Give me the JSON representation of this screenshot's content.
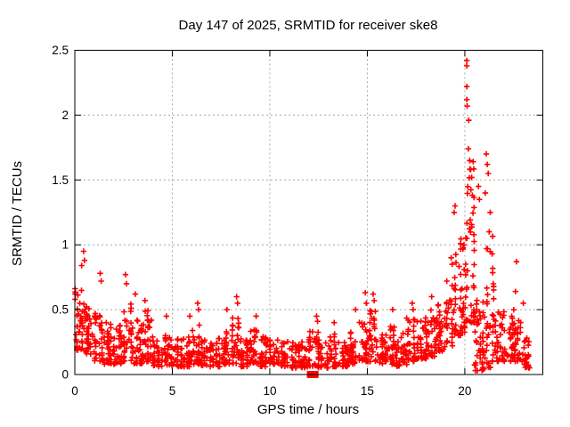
{
  "figure": {
    "background": "#ffffff",
    "border_color": "#000000",
    "grid_color": "#a8a8a8",
    "text_color": "#000000"
  },
  "chart_data": {
    "type": "scatter",
    "title": "Day 147 of 2025, SRMTID for receiver ske8",
    "xlabel": "GPS time / hours",
    "ylabel": "SRMTID / TECUs",
    "series_name": "SRMTID",
    "xlim": [
      0,
      24
    ],
    "ylim": [
      0,
      2.5
    ],
    "xticks": [
      0,
      5,
      10,
      15,
      20
    ],
    "yticks": [
      0,
      0.5,
      1,
      1.5,
      2,
      2.5
    ],
    "grid": true,
    "marker": "plus",
    "marker_color": "#ff0000",
    "seed": 7,
    "density_bins": [
      [
        0.0,
        0.5,
        0.18,
        0.68,
        40
      ],
      [
        0.5,
        1.0,
        0.15,
        0.55,
        36
      ],
      [
        1.0,
        1.5,
        0.1,
        0.5,
        34
      ],
      [
        1.5,
        2.0,
        0.08,
        0.4,
        32
      ],
      [
        2.0,
        2.5,
        0.08,
        0.38,
        32
      ],
      [
        2.5,
        3.0,
        0.1,
        0.55,
        34
      ],
      [
        3.0,
        3.5,
        0.08,
        0.45,
        32
      ],
      [
        3.5,
        4.0,
        0.1,
        0.5,
        34
      ],
      [
        4.0,
        4.5,
        0.06,
        0.3,
        30
      ],
      [
        4.5,
        5.0,
        0.06,
        0.3,
        30
      ],
      [
        5.0,
        5.5,
        0.06,
        0.28,
        30
      ],
      [
        5.5,
        6.0,
        0.06,
        0.3,
        30
      ],
      [
        6.0,
        6.5,
        0.08,
        0.4,
        32
      ],
      [
        6.5,
        7.0,
        0.06,
        0.3,
        30
      ],
      [
        7.0,
        7.5,
        0.06,
        0.28,
        30
      ],
      [
        7.5,
        8.0,
        0.08,
        0.35,
        30
      ],
      [
        8.0,
        8.5,
        0.08,
        0.45,
        32
      ],
      [
        8.5,
        9.0,
        0.06,
        0.3,
        30
      ],
      [
        9.0,
        9.5,
        0.08,
        0.35,
        30
      ],
      [
        9.5,
        10.0,
        0.06,
        0.3,
        30
      ],
      [
        10.0,
        10.5,
        0.08,
        0.32,
        30
      ],
      [
        10.5,
        11.0,
        0.06,
        0.28,
        30
      ],
      [
        11.0,
        11.5,
        0.05,
        0.25,
        28
      ],
      [
        11.5,
        12.0,
        0.05,
        0.28,
        28
      ],
      [
        12.0,
        12.5,
        0.06,
        0.35,
        30
      ],
      [
        12.5,
        13.0,
        0.05,
        0.25,
        28
      ],
      [
        13.0,
        13.5,
        0.06,
        0.32,
        30
      ],
      [
        13.5,
        14.0,
        0.06,
        0.3,
        30
      ],
      [
        14.0,
        14.5,
        0.08,
        0.38,
        32
      ],
      [
        14.5,
        15.0,
        0.1,
        0.45,
        32
      ],
      [
        15.0,
        15.5,
        0.1,
        0.5,
        34
      ],
      [
        15.5,
        16.0,
        0.08,
        0.35,
        30
      ],
      [
        16.0,
        16.5,
        0.08,
        0.38,
        32
      ],
      [
        16.5,
        17.0,
        0.06,
        0.32,
        30
      ],
      [
        17.0,
        17.5,
        0.1,
        0.45,
        32
      ],
      [
        17.5,
        18.0,
        0.12,
        0.42,
        32
      ],
      [
        18.0,
        18.5,
        0.14,
        0.52,
        34
      ],
      [
        18.5,
        19.0,
        0.18,
        0.55,
        34
      ],
      [
        19.0,
        19.5,
        0.22,
        0.75,
        36
      ],
      [
        19.5,
        20.0,
        0.3,
        1.05,
        40
      ],
      [
        20.0,
        20.5,
        0.4,
        1.65,
        48
      ],
      [
        20.5,
        21.0,
        0.03,
        0.6,
        44
      ],
      [
        21.0,
        21.5,
        0.05,
        1.1,
        40
      ],
      [
        21.5,
        22.0,
        0.1,
        0.5,
        32
      ],
      [
        22.0,
        22.5,
        0.1,
        0.5,
        34
      ],
      [
        22.5,
        23.0,
        0.1,
        0.45,
        32
      ],
      [
        23.0,
        23.4,
        0.05,
        0.3,
        24
      ]
    ],
    "outliers": [
      [
        0.02,
        0.62
      ],
      [
        0.02,
        0.58
      ],
      [
        0.35,
        0.84
      ],
      [
        0.45,
        0.95
      ],
      [
        0.5,
        0.88
      ],
      [
        1.3,
        0.78
      ],
      [
        1.35,
        0.72
      ],
      [
        2.6,
        0.77
      ],
      [
        2.65,
        0.7
      ],
      [
        3.1,
        0.62
      ],
      [
        3.6,
        0.57
      ],
      [
        4.7,
        0.45
      ],
      [
        5.9,
        0.45
      ],
      [
        6.3,
        0.55
      ],
      [
        6.35,
        0.5
      ],
      [
        7.8,
        0.5
      ],
      [
        8.3,
        0.6
      ],
      [
        8.35,
        0.55
      ],
      [
        9.3,
        0.45
      ],
      [
        12.4,
        0.45
      ],
      [
        12.45,
        0.41
      ],
      [
        13.3,
        0.4
      ],
      [
        14.4,
        0.5
      ],
      [
        14.9,
        0.63
      ],
      [
        14.95,
        0.55
      ],
      [
        15.3,
        0.62
      ],
      [
        15.35,
        0.57
      ],
      [
        16.3,
        0.5
      ],
      [
        17.3,
        0.55
      ],
      [
        17.35,
        0.5
      ],
      [
        18.3,
        0.6
      ],
      [
        19.3,
        0.9
      ],
      [
        19.35,
        0.85
      ],
      [
        19.45,
        1.25
      ],
      [
        19.5,
        1.3
      ],
      [
        20.1,
        2.42
      ],
      [
        20.1,
        2.38
      ],
      [
        20.1,
        2.22
      ],
      [
        20.1,
        2.12
      ],
      [
        20.12,
        2.07
      ],
      [
        20.2,
        1.96
      ],
      [
        20.18,
        1.74
      ],
      [
        20.25,
        1.65
      ],
      [
        20.3,
        1.58
      ],
      [
        20.35,
        1.52
      ],
      [
        20.7,
        1.45
      ],
      [
        20.75,
        1.35
      ],
      [
        21.05,
        1.4
      ],
      [
        21.1,
        1.7
      ],
      [
        21.15,
        1.62
      ],
      [
        21.2,
        1.55
      ],
      [
        21.25,
        1.1
      ],
      [
        21.3,
        1.25
      ],
      [
        22.6,
        0.64
      ],
      [
        22.65,
        0.87
      ],
      [
        23.0,
        0.55
      ]
    ],
    "special_marker": {
      "x": 12.2,
      "y": 0,
      "shape": "filled-square",
      "color": "#ff0000"
    }
  }
}
